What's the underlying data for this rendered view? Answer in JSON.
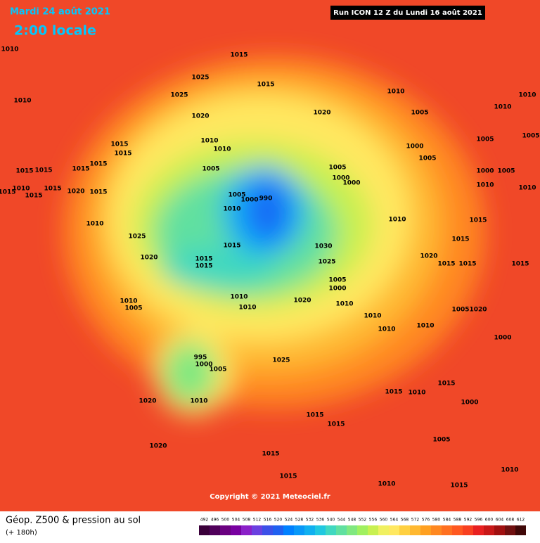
{
  "header": {
    "date": "Mardi 24 août 2021",
    "time": "2:00 locale",
    "run": "Run ICON 12 Z du Lundi 16 août 2021"
  },
  "footer": {
    "title": "Géop. Z500 & pression au sol",
    "lead": "(+ 180h)",
    "copyright": "Copyright © 2021 Meteociel.fr"
  },
  "legend": {
    "values": [
      492,
      496,
      500,
      504,
      508,
      512,
      516,
      520,
      524,
      528,
      532,
      536,
      540,
      544,
      548,
      552,
      556,
      560,
      564,
      568,
      572,
      576,
      580,
      584,
      588,
      592,
      596,
      600,
      604,
      608,
      612
    ],
    "colors": [
      "#3a003a",
      "#50005a",
      "#6a0080",
      "#7800a0",
      "#8a20c8",
      "#6a40e0",
      "#3c50e8",
      "#2060f0",
      "#0080ff",
      "#0898f8",
      "#10b0f0",
      "#20c8e0",
      "#40d8c0",
      "#60e0a0",
      "#80e880",
      "#a0f060",
      "#c8f050",
      "#f0f060",
      "#ffe860",
      "#ffd040",
      "#ffb830",
      "#ffa020",
      "#ff8820",
      "#ff7020",
      "#ff5820",
      "#f84020",
      "#e82020",
      "#c81818",
      "#a01010",
      "#701010",
      "#400808"
    ]
  },
  "isobar_labels": [
    "1010",
    "1010",
    "1015",
    "1025",
    "1025",
    "1015",
    "1020",
    "1020",
    "1010",
    "1005",
    "1010",
    "1010",
    "1015",
    "1015",
    "1010",
    "1010",
    "1000",
    "1005",
    "1005",
    "1015",
    "1015",
    "1015",
    "1015",
    "1005",
    "1005",
    "1000",
    "1000",
    "1005",
    "1000",
    "1005",
    "1015",
    "1010",
    "1015",
    "1015",
    "1020",
    "1015",
    "1005",
    "1000",
    "990",
    "1010",
    "1010",
    "1010",
    "1010",
    "1010",
    "1025",
    "1015",
    "1015",
    "1030",
    "1015",
    "1020",
    "1015",
    "1020",
    "1015",
    "1015",
    "1025",
    "1005",
    "1000",
    "1015",
    "1015",
    "1010",
    "1010",
    "1020",
    "1010",
    "1010",
    "1005",
    "1010",
    "1010",
    "1010",
    "1005",
    "1020",
    "1000",
    "1025",
    "995",
    "1000",
    "1005",
    "1020",
    "1010",
    "1015",
    "1010",
    "1015",
    "1000",
    "1015",
    "1015",
    "1020",
    "1015",
    "1005",
    "1015",
    "1010",
    "1015",
    "1010"
  ]
}
